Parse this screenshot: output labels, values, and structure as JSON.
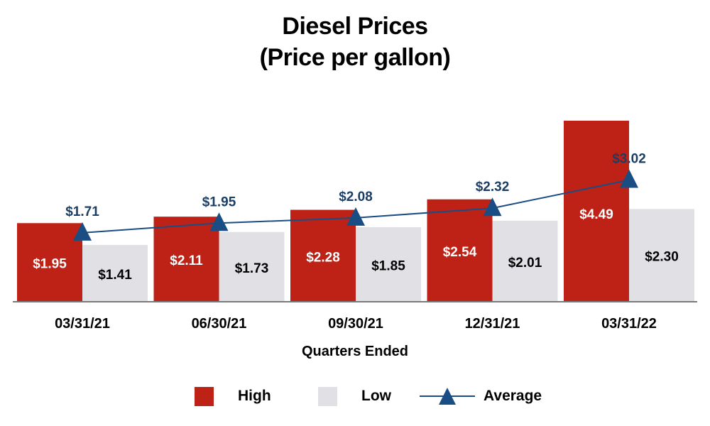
{
  "chart_data": {
    "type": "bar",
    "title": "Diesel Prices",
    "subtitle": "(Price per gallon)",
    "xlabel": "Quarters Ended",
    "ylabel": "",
    "categories": [
      "03/31/21",
      "06/30/21",
      "09/30/21",
      "12/31/21",
      "03/31/22"
    ],
    "series": [
      {
        "name": "High",
        "kind": "bar",
        "values": [
          1.95,
          2.11,
          2.28,
          2.54,
          4.49
        ],
        "labels": [
          "$1.95",
          "$2.11",
          "$2.28",
          "$2.54",
          "$4.49"
        ]
      },
      {
        "name": "Low",
        "kind": "bar",
        "values": [
          1.41,
          1.73,
          1.85,
          2.01,
          2.3
        ],
        "labels": [
          "$1.41",
          "$1.73",
          "$1.85",
          "$2.01",
          "$2.30"
        ]
      },
      {
        "name": "Average",
        "kind": "line",
        "values": [
          1.71,
          1.95,
          2.08,
          2.32,
          3.02
        ],
        "labels": [
          "$1.71",
          "$1.95",
          "$2.08",
          "$2.32",
          "$3.02"
        ]
      }
    ],
    "ylim": [
      0,
      4.49
    ],
    "grid": false,
    "legend_position": "bottom",
    "colors": {
      "high": "#be2217",
      "low": "#e0e0e5",
      "average": "#1a4d84",
      "high_label": "#ffffff",
      "low_label": "#000000",
      "avg_label": "#1b3e66"
    }
  },
  "legend": [
    {
      "name": "High"
    },
    {
      "name": "Low"
    },
    {
      "name": "Average"
    }
  ]
}
